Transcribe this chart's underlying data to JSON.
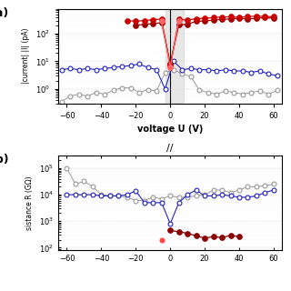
{
  "panel_a": {
    "ylabel": "|current| |I| (pA)",
    "xlabel": "voltage U (V)",
    "ylim": [
      0.3,
      800
    ],
    "xlim": [
      -65,
      65
    ],
    "xticks": [
      -60,
      -40,
      -20,
      0,
      20,
      40,
      60
    ],
    "gray_shading": [
      -3,
      8
    ],
    "vline": 0,
    "blue_x": [
      -63,
      -58,
      -53,
      -48,
      -43,
      -38,
      -33,
      -28,
      -23,
      -18,
      -13,
      -8,
      -3,
      2,
      7,
      12,
      17,
      22,
      27,
      32,
      37,
      42,
      47,
      52,
      57,
      62
    ],
    "blue_y": [
      5.0,
      5.5,
      5.0,
      5.5,
      5.0,
      5.5,
      6.0,
      6.5,
      7.0,
      8.0,
      6.0,
      5.0,
      1.0,
      10.0,
      5.0,
      5.5,
      5.0,
      5.0,
      4.5,
      5.0,
      4.5,
      4.5,
      4.0,
      4.5,
      3.5,
      3.0
    ],
    "gray_x": [
      -63,
      -58,
      -53,
      -48,
      -43,
      -38,
      -33,
      -28,
      -23,
      -18,
      -13,
      -8,
      -3,
      2,
      7,
      12,
      17,
      22,
      27,
      32,
      37,
      42,
      47,
      52,
      57,
      62
    ],
    "gray_y": [
      0.35,
      0.55,
      0.65,
      0.55,
      0.75,
      0.65,
      0.9,
      1.1,
      1.1,
      0.75,
      0.95,
      0.85,
      3.8,
      5.0,
      3.5,
      2.8,
      0.9,
      0.75,
      0.65,
      0.85,
      0.75,
      0.65,
      0.75,
      0.85,
      0.65,
      0.9
    ],
    "red_series": [
      {
        "x": [
          -20,
          -15,
          -10,
          -5,
          0,
          5,
          10,
          15,
          20,
          25,
          30,
          35,
          40,
          45,
          50,
          55,
          60
        ],
        "y": [
          200,
          220,
          230,
          250,
          8,
          210,
          220,
          280,
          290,
          310,
          330,
          340,
          360,
          340,
          360,
          380,
          360
        ],
        "color": "#990000",
        "filled": true
      },
      {
        "x": [
          -25,
          -20,
          -15,
          -10,
          -5,
          0,
          5,
          10,
          15,
          20,
          25,
          30,
          35,
          40,
          45,
          50,
          55,
          60
        ],
        "y": [
          300,
          280,
          300,
          320,
          340,
          7,
          330,
          310,
          350,
          360,
          380,
          400,
          410,
          390,
          420,
          430,
          420,
          410
        ],
        "color": "#cc0000",
        "filled": true
      },
      {
        "x": [
          -5,
          0,
          5
        ],
        "y": [
          280,
          6,
          300
        ],
        "color": "#ff6666",
        "filled": true
      }
    ]
  },
  "panel_b": {
    "ylabel": "sistance R (GΩ)",
    "ylim": [
      80,
      300000
    ],
    "xlim": [
      -65,
      65
    ],
    "xticks": [
      -60,
      -40,
      -20,
      0,
      20,
      40,
      60
    ],
    "blue_x": [
      -60,
      -55,
      -50,
      -45,
      -40,
      -35,
      -30,
      -25,
      -20,
      -15,
      -10,
      -5,
      0,
      5,
      10,
      15,
      20,
      25,
      30,
      35,
      40,
      45,
      50,
      55,
      60
    ],
    "blue_y": [
      10000,
      10000,
      10000,
      10000,
      9000,
      9000,
      9000,
      10000,
      14000,
      5000,
      5000,
      5000,
      800,
      5000,
      10000,
      15000,
      9000,
      9000,
      10000,
      9000,
      8000,
      8000,
      9000,
      12000,
      15000
    ],
    "gray_x": [
      -60,
      -55,
      -50,
      -45,
      -40,
      -35,
      -30,
      -25,
      -20,
      -15,
      -10,
      -5,
      0,
      5,
      10,
      15,
      20,
      25,
      30,
      35,
      40,
      45,
      50,
      55,
      60
    ],
    "gray_y": [
      100000,
      25000,
      32000,
      20000,
      10000,
      9000,
      9000,
      8000,
      6000,
      6000,
      8000,
      7000,
      9000,
      8000,
      8000,
      9000,
      10000,
      15000,
      15000,
      12000,
      15000,
      20000,
      20000,
      22000,
      25000
    ],
    "red_dark_x": [
      0,
      5,
      10,
      15,
      20,
      25,
      30,
      35,
      40
    ],
    "red_dark_y": [
      450,
      400,
      350,
      280,
      230,
      260,
      240,
      290,
      260
    ],
    "red_light_x": [
      -5
    ],
    "red_light_y": [
      200
    ]
  },
  "colors": {
    "blue": "#2222bb",
    "gray": "#999999",
    "red_dark": "#880000",
    "red_light": "#ff4444",
    "shading": "#bbbbbb"
  }
}
